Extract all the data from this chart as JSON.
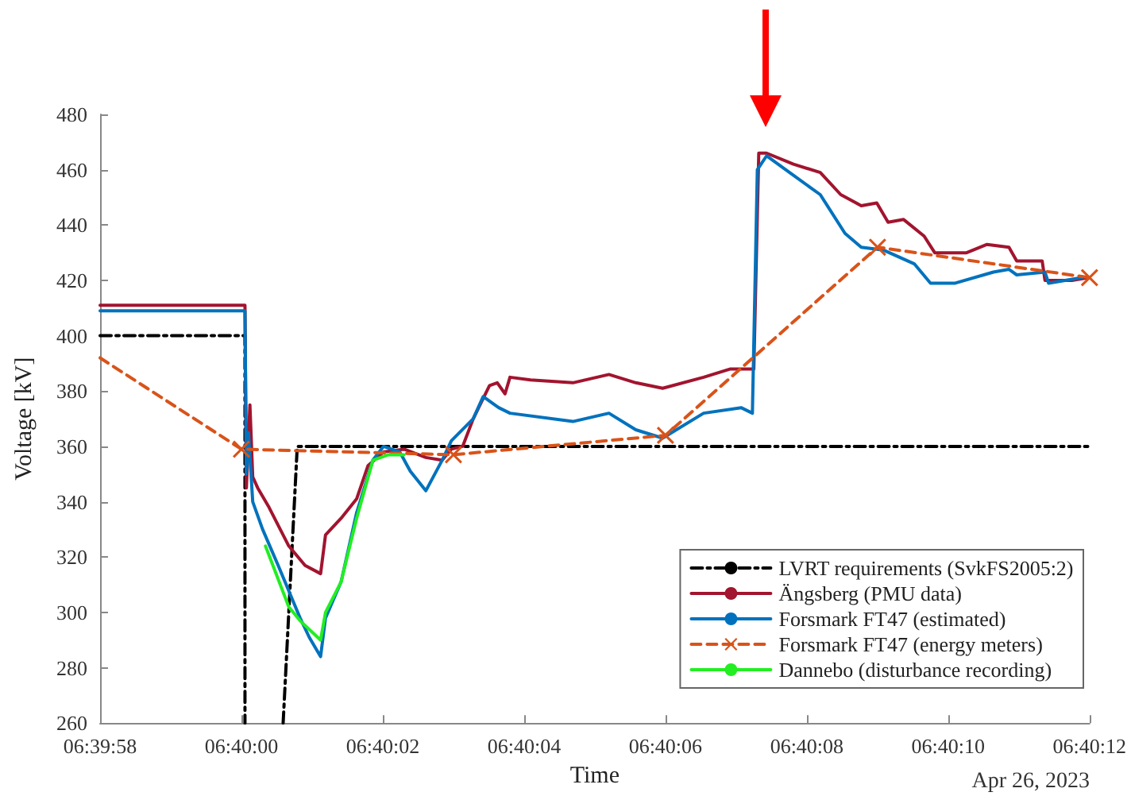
{
  "chart_data": {
    "type": "line",
    "xlabel": "Time",
    "ylabel": "Voltage [kV]",
    "annotations": [
      "Apr 26, 2023"
    ],
    "xlim": [
      6.6661111,
      6.67
    ],
    "xticks": [
      {
        "value": 6.6661111,
        "label": "06:39:58"
      },
      {
        "value": 6.6666667,
        "label": "06:40:00"
      },
      {
        "value": 6.6672222,
        "label": "06:40:02"
      },
      {
        "value": 6.6677778,
        "label": "06:40:04"
      },
      {
        "value": 6.6683333,
        "label": "06:40:06"
      },
      {
        "value": 6.6688889,
        "label": "06:40:08"
      },
      {
        "value": 6.6694444,
        "label": "06:40:10"
      },
      {
        "value": 6.67,
        "label": "06:40:12"
      }
    ],
    "ylim": [
      260,
      480
    ],
    "yticks": [
      260,
      280,
      300,
      320,
      340,
      360,
      380,
      400,
      420,
      440,
      460,
      480
    ],
    "grid": false,
    "legend": "bottom right",
    "marker": "none",
    "line_style": "solid",
    "series": [
      {
        "name": "LVRT requirements (SvkFS2005:2)",
        "color": "#000000",
        "line_style": "dashdot",
        "x": [
          6.6661111,
          6.6666806,
          6.6666806,
          6.66675,
          6.6668306,
          6.6668861,
          6.67
        ],
        "values": [
          400,
          400,
          260,
          null,
          260,
          360,
          360
        ]
      },
      {
        "name": "Ängsberg (PMU data)",
        "color": "#a2142f",
        "x": [
          6.6661111,
          6.6666806,
          6.6666861,
          6.6667,
          6.6667111,
          6.6667306,
          6.666775,
          6.6668528,
          6.6669167,
          6.6669778,
          6.6669972,
          6.6670583,
          6.6671194,
          6.6671639,
          6.667225,
          6.6673056,
          6.6673917,
          6.6674556,
          6.6674917,
          6.6675361,
          6.6675778,
          6.6676417,
          6.6676722,
          6.6677028,
          6.6677222,
          6.6678028,
          6.6679694,
          6.6681111,
          6.6682167,
          6.6683222,
          6.6684833,
          6.6685889,
          6.6686806,
          6.6687,
          6.6687306,
          6.6688361,
          6.6689417,
          6.6690222,
          6.6691028,
          6.6691639,
          6.6692083,
          6.6692694,
          6.66935,
          6.6693917,
          6.6695167,
          6.6695972,
          6.6696833,
          6.6697139,
          6.6698139,
          6.669825,
          6.6699306,
          6.6699944
        ],
        "values": [
          411,
          411,
          345,
          375,
          349,
          345,
          338,
          324,
          317,
          314,
          328,
          334,
          341,
          353,
          358,
          359,
          356,
          355,
          359,
          360,
          370,
          382,
          383,
          379,
          385,
          384,
          383,
          386,
          383,
          381,
          385,
          388,
          388,
          466,
          466,
          462,
          459,
          451,
          447,
          448,
          441,
          442,
          436,
          430,
          430,
          433,
          432,
          427,
          427,
          420,
          420,
          421
        ]
      },
      {
        "name": "Forsmark FT47 (estimated)",
        "color": "#0072bd",
        "x": [
          6.6661111,
          6.6666806,
          6.6666861,
          6.6666944,
          6.6667111,
          6.66675,
          6.6668111,
          6.6668972,
          6.6669333,
          6.6669778,
          6.6669972,
          6.6670583,
          6.6671194,
          6.6671833,
          6.667225,
          6.6672889,
          6.6673306,
          6.6673917,
          6.6674556,
          6.6674917,
          6.6675778,
          6.6676167,
          6.6676778,
          6.6677222,
          6.6679694,
          6.6681111,
          6.6682167,
          6.6683222,
          6.6684833,
          6.6686306,
          6.668675,
          6.6686944,
          6.6687306,
          6.6688361,
          6.6689417,
          6.6690389,
          6.6691028,
          6.6691889,
          6.6693111,
          6.669375,
          6.6694722,
          6.6696222,
          6.6696833,
          6.6697139,
          6.669825,
          6.6698389,
          6.6699694
        ],
        "values": [
          409,
          409,
          350,
          365,
          340,
          330,
          317,
          298,
          291,
          284,
          298,
          311,
          336,
          355,
          360,
          358,
          351,
          344,
          355,
          362,
          370,
          378,
          374,
          372,
          369,
          372,
          366,
          363,
          372,
          374,
          372,
          460,
          465,
          458,
          451,
          437,
          432,
          431,
          426,
          419,
          419,
          423,
          424,
          422,
          423,
          419,
          421
        ]
      },
      {
        "name": "Forsmark FT47 (energy meters)",
        "color": "#d95319",
        "line_style": "dashed",
        "marker": "cross",
        "x": [
          6.6661111,
          6.6666667,
          6.6675,
          6.6683333,
          6.6691667,
          6.67
        ],
        "values": [
          392,
          359,
          357,
          364,
          432,
          421
        ]
      },
      {
        "name": "Dannebo (disturbance recording)",
        "color": "#22ee22",
        "x": [
          6.6667611,
          6.6668528,
          6.6668972,
          6.6669778,
          6.6669972,
          6.6670583,
          6.6671194,
          6.6671833,
          6.6672444,
          6.6673056
        ],
        "values": [
          324,
          302,
          297,
          290,
          300,
          311,
          334,
          355,
          357,
          357
        ]
      }
    ]
  }
}
